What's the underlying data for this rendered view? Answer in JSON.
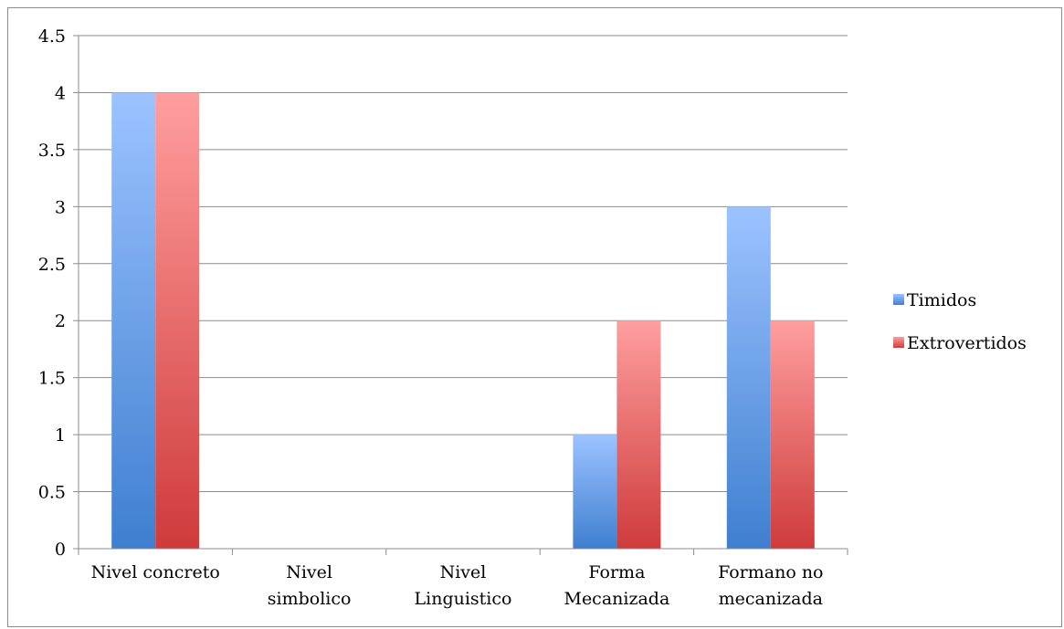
{
  "chart_data": {
    "type": "bar",
    "categories": [
      [
        "Nivel concreto"
      ],
      [
        "Nivel",
        "simbolico"
      ],
      [
        "Nivel",
        "Linguistico"
      ],
      [
        "Forma",
        "Mecanizada"
      ],
      [
        "Formano  no",
        "mecanizada"
      ]
    ],
    "series": [
      {
        "name": "Timidos",
        "values": [
          4,
          0,
          0,
          1,
          3
        ],
        "color_top": "#9cc3ff",
        "color_bottom": "#3f7fd0"
      },
      {
        "name": "Extrovertidos",
        "values": [
          4,
          0,
          0,
          2,
          2
        ],
        "color_top": "#ff9e9e",
        "color_bottom": "#cf3b3b"
      }
    ],
    "yticks": [
      "0",
      "0.5",
      "1",
      "1.5",
      "2",
      "2.5",
      "3",
      "3.5",
      "4",
      "4.5"
    ],
    "ylim": [
      0,
      4.5
    ],
    "grid": true,
    "legend_position": "right",
    "title": "",
    "xlabel": "",
    "ylabel": ""
  }
}
